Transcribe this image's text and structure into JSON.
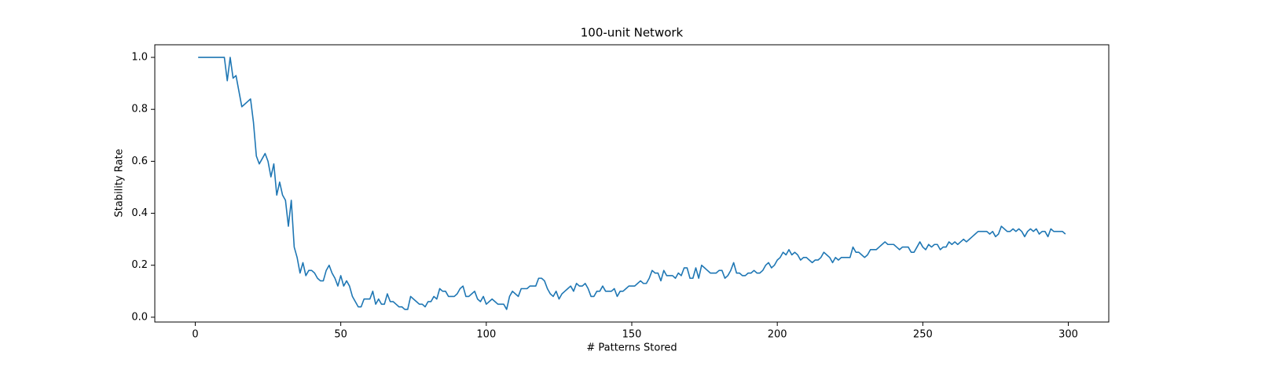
{
  "chart_data": {
    "type": "line",
    "title": "100-unit Network",
    "xlabel": "# Patterns Stored",
    "ylabel": "Stability Rate",
    "color": "#1f77b4",
    "grid": false,
    "xlim": [
      -13.9,
      313.9
    ],
    "xticks": [
      0,
      50,
      100,
      150,
      200,
      250,
      300
    ],
    "ylim": [
      -0.0185,
      1.0485
    ],
    "yticks": [
      {
        "value": 0,
        "label": "0.0"
      },
      0.2,
      0.4,
      0.6,
      0.8,
      {
        "value": 1,
        "label": "1.0"
      }
    ],
    "x": [
      1,
      2,
      3,
      4,
      5,
      6,
      7,
      8,
      9,
      10,
      11,
      12,
      13,
      14,
      15,
      16,
      17,
      18,
      19,
      20,
      21,
      22,
      23,
      24,
      25,
      26,
      27,
      28,
      29,
      30,
      31,
      32,
      33,
      34,
      35,
      36,
      37,
      38,
      39,
      40,
      41,
      42,
      43,
      44,
      45,
      46,
      47,
      48,
      49,
      50,
      51,
      52,
      53,
      54,
      55,
      56,
      57,
      58,
      59,
      60,
      61,
      62,
      63,
      64,
      65,
      66,
      67,
      68,
      69,
      70,
      71,
      72,
      73,
      74,
      75,
      76,
      77,
      78,
      79,
      80,
      81,
      82,
      83,
      84,
      85,
      86,
      87,
      88,
      89,
      90,
      91,
      92,
      93,
      94,
      95,
      96,
      97,
      98,
      99,
      100,
      101,
      102,
      103,
      104,
      105,
      106,
      107,
      108,
      109,
      110,
      111,
      112,
      113,
      114,
      115,
      116,
      117,
      118,
      119,
      120,
      121,
      122,
      123,
      124,
      125,
      126,
      127,
      128,
      129,
      130,
      131,
      132,
      133,
      134,
      135,
      136,
      137,
      138,
      139,
      140,
      141,
      142,
      143,
      144,
      145,
      146,
      147,
      148,
      149,
      150,
      151,
      152,
      153,
      154,
      155,
      156,
      157,
      158,
      159,
      160,
      161,
      162,
      163,
      164,
      165,
      166,
      167,
      168,
      169,
      170,
      171,
      172,
      173,
      174,
      175,
      176,
      177,
      178,
      179,
      180,
      181,
      182,
      183,
      184,
      185,
      186,
      187,
      188,
      189,
      190,
      191,
      192,
      193,
      194,
      195,
      196,
      197,
      198,
      199,
      200,
      201,
      202,
      203,
      204,
      205,
      206,
      207,
      208,
      209,
      210,
      211,
      212,
      213,
      214,
      215,
      216,
      217,
      218,
      219,
      220,
      221,
      222,
      223,
      224,
      225,
      226,
      227,
      228,
      229,
      230,
      231,
      232,
      233,
      234,
      235,
      236,
      237,
      238,
      239,
      240,
      241,
      242,
      243,
      244,
      245,
      246,
      247,
      248,
      249,
      250,
      251,
      252,
      253,
      254,
      255,
      256,
      257,
      258,
      259,
      260,
      261,
      262,
      263,
      264,
      265,
      266,
      267,
      268,
      269,
      270,
      271,
      272,
      273,
      274,
      275,
      276,
      277,
      278,
      279,
      280,
      281,
      282,
      283,
      284,
      285,
      286,
      287,
      288,
      289,
      290,
      291,
      292,
      293,
      294,
      295,
      296,
      297,
      298,
      299
    ],
    "values": [
      1,
      1,
      1,
      1,
      1,
      1,
      1,
      1,
      1,
      1,
      0.91,
      1,
      0.92,
      0.93,
      0.87,
      0.81,
      0.82,
      0.83,
      0.84,
      0.75,
      0.62,
      0.59,
      0.61,
      0.63,
      0.6,
      0.54,
      0.59,
      0.47,
      0.52,
      0.47,
      0.45,
      0.35,
      0.45,
      0.27,
      0.23,
      0.17,
      0.21,
      0.16,
      0.18,
      0.18,
      0.17,
      0.15,
      0.14,
      0.14,
      0.18,
      0.2,
      0.17,
      0.15,
      0.12,
      0.16,
      0.12,
      0.14,
      0.12,
      0.08,
      0.06,
      0.04,
      0.04,
      0.07,
      0.07,
      0.07,
      0.1,
      0.05,
      0.07,
      0.05,
      0.05,
      0.09,
      0.06,
      0.06,
      0.05,
      0.04,
      0.04,
      0.03,
      0.03,
      0.08,
      0.07,
      0.06,
      0.05,
      0.05,
      0.04,
      0.06,
      0.06,
      0.08,
      0.07,
      0.11,
      0.1,
      0.1,
      0.08,
      0.08,
      0.08,
      0.09,
      0.11,
      0.12,
      0.08,
      0.08,
      0.09,
      0.1,
      0.07,
      0.06,
      0.08,
      0.05,
      0.06,
      0.07,
      0.06,
      0.05,
      0.05,
      0.05,
      0.03,
      0.08,
      0.1,
      0.09,
      0.08,
      0.11,
      0.11,
      0.11,
      0.12,
      0.12,
      0.12,
      0.15,
      0.15,
      0.14,
      0.11,
      0.09,
      0.08,
      0.1,
      0.07,
      0.09,
      0.1,
      0.11,
      0.12,
      0.1,
      0.13,
      0.12,
      0.12,
      0.13,
      0.11,
      0.08,
      0.08,
      0.1,
      0.1,
      0.12,
      0.1,
      0.1,
      0.1,
      0.11,
      0.08,
      0.1,
      0.1,
      0.11,
      0.12,
      0.12,
      0.12,
      0.13,
      0.14,
      0.13,
      0.13,
      0.15,
      0.18,
      0.17,
      0.17,
      0.14,
      0.18,
      0.16,
      0.16,
      0.16,
      0.15,
      0.17,
      0.16,
      0.19,
      0.19,
      0.15,
      0.15,
      0.19,
      0.15,
      0.2,
      0.19,
      0.18,
      0.17,
      0.17,
      0.17,
      0.18,
      0.18,
      0.15,
      0.16,
      0.18,
      0.21,
      0.17,
      0.17,
      0.16,
      0.16,
      0.17,
      0.17,
      0.18,
      0.17,
      0.17,
      0.18,
      0.2,
      0.21,
      0.19,
      0.2,
      0.22,
      0.23,
      0.25,
      0.24,
      0.26,
      0.24,
      0.25,
      0.24,
      0.22,
      0.23,
      0.23,
      0.22,
      0.21,
      0.22,
      0.22,
      0.23,
      0.25,
      0.24,
      0.23,
      0.21,
      0.23,
      0.22,
      0.23,
      0.23,
      0.23,
      0.23,
      0.27,
      0.25,
      0.25,
      0.24,
      0.23,
      0.24,
      0.26,
      0.26,
      0.26,
      0.27,
      0.28,
      0.29,
      0.28,
      0.28,
      0.28,
      0.27,
      0.26,
      0.27,
      0.27,
      0.27,
      0.25,
      0.25,
      0.27,
      0.29,
      0.27,
      0.26,
      0.28,
      0.27,
      0.28,
      0.28,
      0.26,
      0.27,
      0.27,
      0.29,
      0.28,
      0.29,
      0.28,
      0.29,
      0.3,
      0.29,
      0.3,
      0.31,
      0.32,
      0.33,
      0.33,
      0.33,
      0.33,
      0.32,
      0.33,
      0.31,
      0.32,
      0.35,
      0.34,
      0.33,
      0.33,
      0.34,
      0.33,
      0.34,
      0.33,
      0.31,
      0.33,
      0.34,
      0.33,
      0.34,
      0.32,
      0.33,
      0.33,
      0.31,
      0.34,
      0.33,
      0.33,
      0.33,
      0.33,
      0.32
    ]
  }
}
